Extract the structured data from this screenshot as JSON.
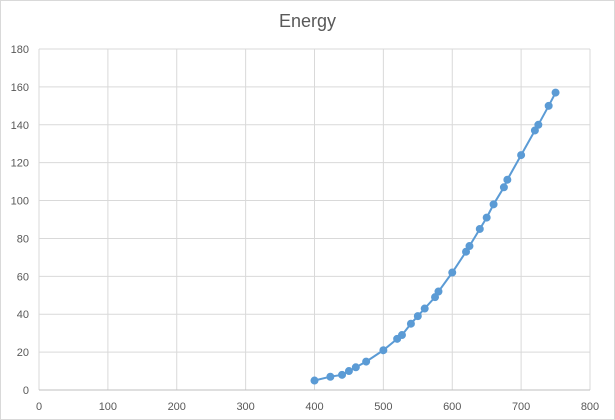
{
  "chart_data": {
    "type": "scatter",
    "title": "Energy",
    "xlabel": "",
    "ylabel": "",
    "xlim": [
      0,
      800
    ],
    "ylim": [
      0,
      180
    ],
    "xticks": [
      0,
      100,
      200,
      300,
      400,
      500,
      600,
      700,
      800
    ],
    "yticks": [
      0,
      20,
      40,
      60,
      80,
      100,
      120,
      140,
      160,
      180
    ],
    "grid": true,
    "legend": "none",
    "series": [
      {
        "color": "#5b9bd5",
        "line": true,
        "markers": true,
        "x": [
          400,
          423,
          440,
          450,
          460,
          475,
          500,
          520,
          527,
          540,
          550,
          560,
          575,
          580,
          600,
          620,
          625,
          640,
          650,
          660,
          675,
          680,
          700,
          720,
          725,
          740,
          750
        ],
        "y": [
          5,
          7,
          8,
          10,
          12,
          15,
          21,
          27,
          29,
          35,
          39,
          43,
          49,
          52,
          62,
          73,
          76,
          85,
          91,
          98,
          107,
          111,
          124,
          137,
          140,
          150,
          157
        ]
      }
    ]
  }
}
